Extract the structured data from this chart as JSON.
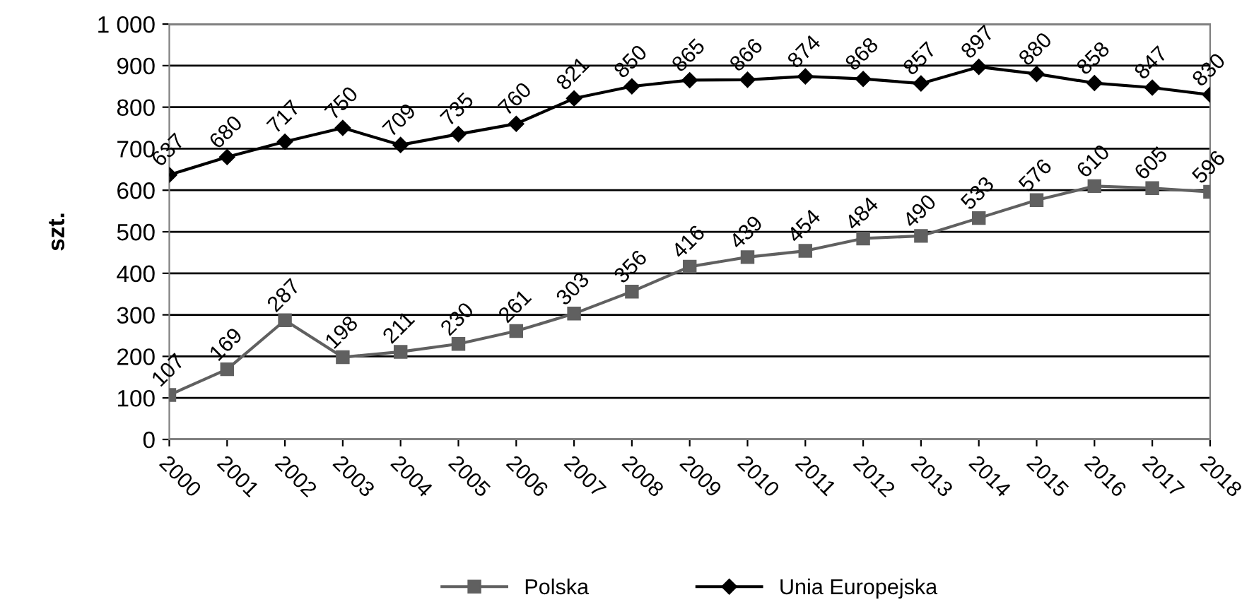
{
  "chart_data": {
    "type": "line",
    "ylabel": "szt.",
    "categories": [
      "2000",
      "2001",
      "2002",
      "2003",
      "2004",
      "2005",
      "2006",
      "2007",
      "2008",
      "2009",
      "2010",
      "2011",
      "2012",
      "2013",
      "2014",
      "2015",
      "2016",
      "2017",
      "2018"
    ],
    "series": [
      {
        "name": "Polska",
        "color": "#606060",
        "marker": "square",
        "values": [
          107,
          169,
          287,
          198,
          211,
          230,
          261,
          303,
          356,
          416,
          439,
          454,
          484,
          490,
          533,
          576,
          610,
          605,
          596
        ]
      },
      {
        "name": "Unia Europejska",
        "color": "#000000",
        "marker": "diamond",
        "values": [
          637,
          680,
          717,
          750,
          709,
          735,
          760,
          821,
          850,
          865,
          866,
          874,
          868,
          857,
          897,
          880,
          858,
          847,
          830
        ]
      }
    ],
    "ylim": [
      0,
      1000
    ],
    "yticks": [
      0,
      100,
      200,
      300,
      400,
      500,
      600,
      700,
      800,
      900,
      {
        "value": 1000,
        "label": "1 000"
      }
    ],
    "grid": "y",
    "legend": "bottom",
    "data_labels": true,
    "line_style": "solid"
  }
}
